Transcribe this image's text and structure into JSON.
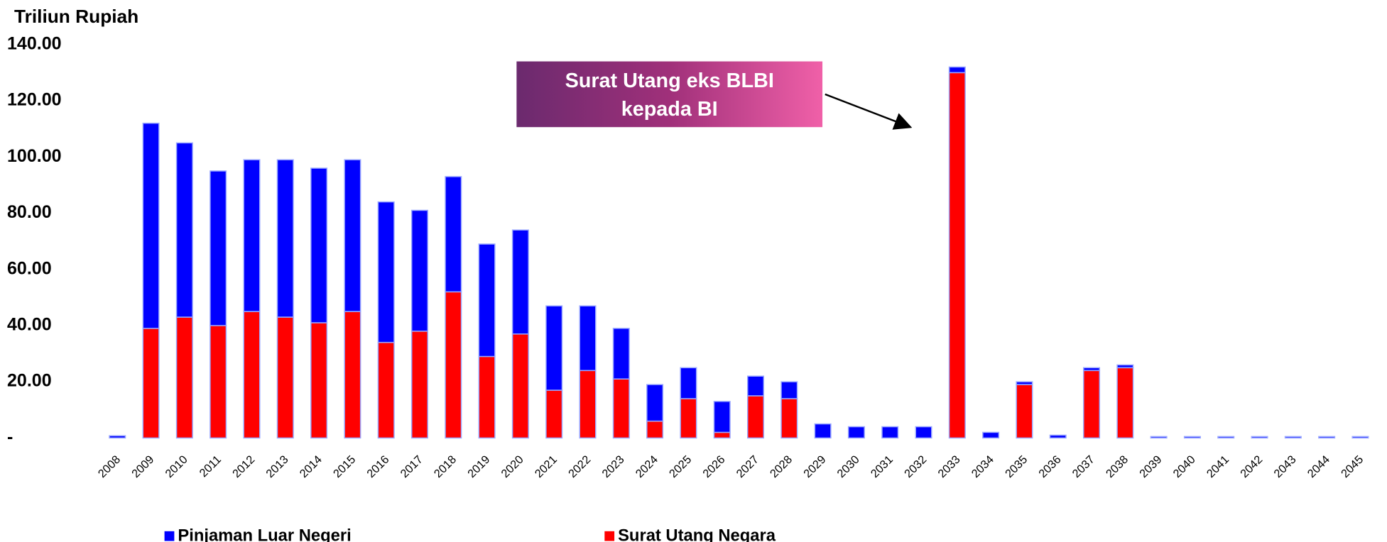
{
  "chart_data": {
    "type": "stacked_bar",
    "y_axis_label": "Triliun Rupiah",
    "categories": [
      "2008",
      "2009",
      "2010",
      "2011",
      "2012",
      "2013",
      "2014",
      "2015",
      "2016",
      "2017",
      "2018",
      "2019",
      "2020",
      "2021",
      "2022",
      "2023",
      "2024",
      "2025",
      "2026",
      "2027",
      "2028",
      "2029",
      "2030",
      "2031",
      "2032",
      "2033",
      "2034",
      "2035",
      "2036",
      "2037",
      "2038",
      "2039",
      "2040",
      "2041",
      "2042",
      "2043",
      "2044",
      "2045"
    ],
    "series": [
      {
        "name": "Surat Utang Negara",
        "color": "#ff0000",
        "values": [
          0,
          39,
          43,
          40,
          45,
          43,
          41,
          45,
          34,
          38,
          52,
          29,
          37,
          17,
          24,
          21,
          6,
          14,
          2,
          15,
          14,
          0,
          0,
          0,
          0,
          130,
          0,
          19,
          0,
          24,
          25,
          0,
          0,
          0,
          0,
          0,
          0,
          0
        ]
      },
      {
        "name": "Pinjaman Luar Negeri",
        "color": "#0000ff",
        "values": [
          0.8,
          73,
          62,
          55,
          54,
          56,
          55,
          54,
          50,
          43,
          41,
          40,
          37,
          30,
          23,
          18,
          13,
          11,
          11,
          7,
          6,
          5,
          4,
          4,
          4,
          2,
          2,
          1,
          1,
          1,
          1,
          0.5,
          0.5,
          0.5,
          0.5,
          0.5,
          0.5,
          0.5
        ]
      }
    ],
    "ylim": [
      0,
      140
    ],
    "yticks": [
      {
        "value": 0,
        "label": "-"
      },
      {
        "value": 20,
        "label": "20.00"
      },
      {
        "value": 40,
        "label": "40.00"
      },
      {
        "value": 60,
        "label": "60.00"
      },
      {
        "value": 80,
        "label": "80.00"
      },
      {
        "value": 100,
        "label": "100.00"
      },
      {
        "value": 120,
        "label": "120.00"
      },
      {
        "value": 140,
        "label": "140.00"
      }
    ],
    "annotation": {
      "lines": [
        "Surat Utang eks BLBI",
        "kepada BI"
      ]
    }
  }
}
